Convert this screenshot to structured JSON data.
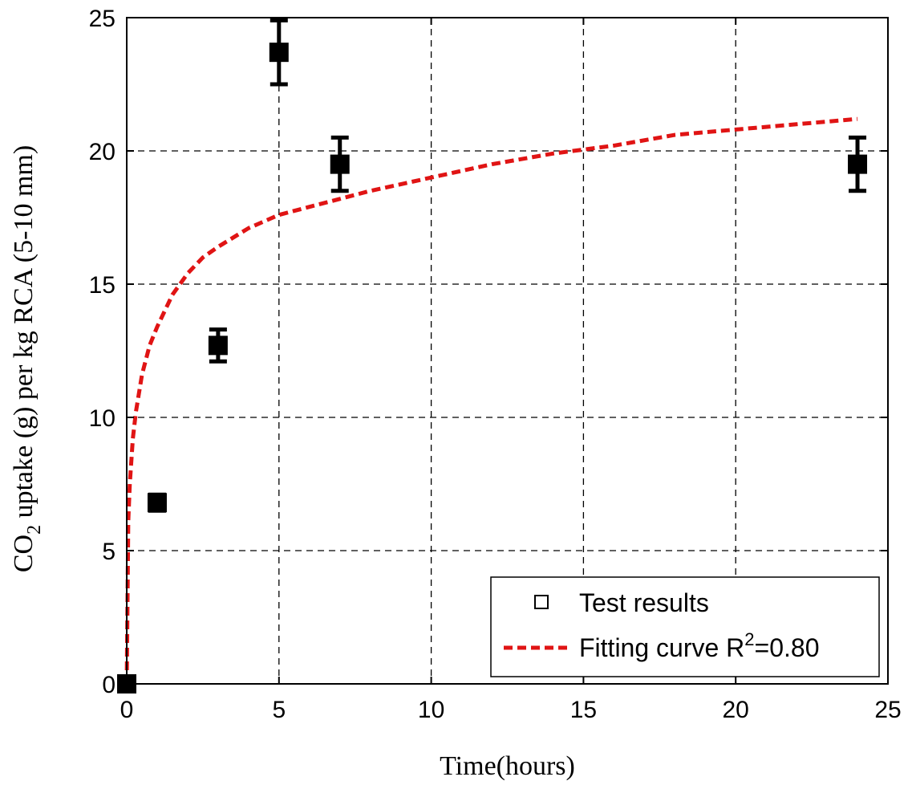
{
  "chart_data": {
    "type": "scatter",
    "title": "",
    "xlabel": "Time(hours)",
    "ylabel": {
      "prefix": "CO",
      "subscript": "2",
      "suffix": " uptake (g) per kg RCA (5-10 mm)"
    },
    "xlim": [
      0,
      25
    ],
    "ylim": [
      0,
      25
    ],
    "xticks": [
      0,
      5,
      10,
      15,
      20,
      25
    ],
    "yticks": [
      0,
      5,
      10,
      15,
      20,
      25
    ],
    "grid": true,
    "legend_position": "bottom-right",
    "series": [
      {
        "name": "Test results",
        "kind": "markers",
        "color": "#000000",
        "x": [
          0,
          1,
          3,
          5,
          7,
          24
        ],
        "y": [
          0,
          6.8,
          12.7,
          23.7,
          19.5,
          19.5
        ],
        "yerr": [
          0,
          0.3,
          0.6,
          1.2,
          1.0,
          1.0
        ]
      },
      {
        "name": "Fitting curve R",
        "name_superscript": "2",
        "name_suffix": "=0.80",
        "kind": "dashed-line",
        "color": "#e01414",
        "x": [
          0,
          0.05,
          0.1,
          0.2,
          0.3,
          0.5,
          0.75,
          1,
          1.5,
          2,
          2.5,
          3,
          4,
          5,
          6,
          7,
          8,
          10,
          12,
          14,
          16,
          18,
          20,
          22,
          24
        ],
        "y": [
          0,
          6.1,
          7.5,
          9.2,
          10.2,
          11.6,
          12.7,
          13.4,
          14.6,
          15.4,
          16.0,
          16.4,
          17.1,
          17.6,
          17.9,
          18.2,
          18.5,
          19.0,
          19.5,
          19.9,
          20.2,
          20.6,
          20.8,
          21.0,
          21.2
        ]
      }
    ]
  }
}
